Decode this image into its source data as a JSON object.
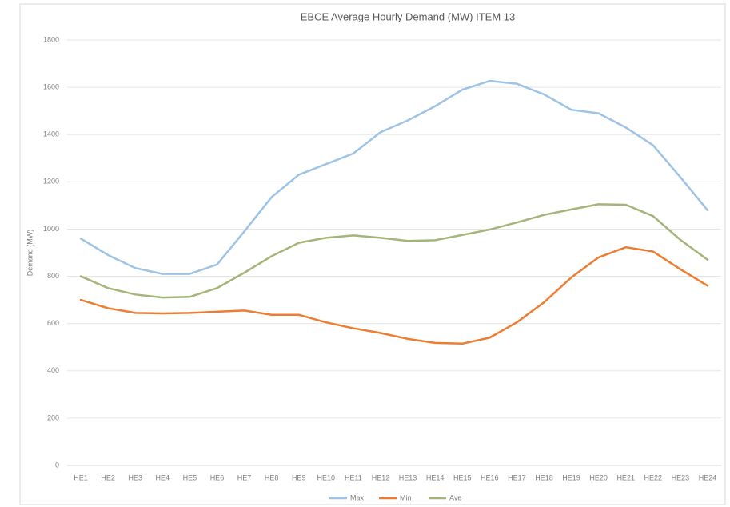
{
  "chart_data": {
    "type": "line",
    "title": "EBCE Average Hourly Demand (MW) ITEM 13",
    "y_label": "Demand (MW)",
    "categories": [
      "HE1",
      "HE2",
      "HE3",
      "HE4",
      "HE5",
      "HE6",
      "HE7",
      "HE8",
      "HE9",
      "HE10",
      "HE11",
      "HE12",
      "HE13",
      "HE14",
      "HE15",
      "HE16",
      "HE17",
      "HE18",
      "HE19",
      "HE20",
      "HE21",
      "HE22",
      "HE23",
      "HE24"
    ],
    "series": [
      {
        "name": "Max",
        "color": "#9dc3e6",
        "values": [
          960,
          890,
          835,
          810,
          810,
          850,
          990,
          1135,
          1230,
          1275,
          1320,
          1410,
          1460,
          1520,
          1590,
          1627,
          1615,
          1570,
          1505,
          1490,
          1430,
          1355,
          1220,
          1080
        ]
      },
      {
        "name": "Min",
        "color": "#ed7d31",
        "values": [
          700,
          665,
          645,
          643,
          645,
          650,
          655,
          637,
          637,
          605,
          580,
          560,
          535,
          518,
          515,
          540,
          605,
          690,
          795,
          880,
          923,
          905,
          830,
          760
        ]
      },
      {
        "name": "Ave",
        "color": "#a5b57a",
        "values": [
          800,
          750,
          723,
          710,
          713,
          750,
          815,
          885,
          942,
          963,
          973,
          963,
          950,
          953,
          975,
          998,
          1028,
          1060,
          1083,
          1105,
          1103,
          1055,
          955,
          870
        ]
      }
    ],
    "ylim": [
      0,
      1800
    ],
    "yticks": [
      0,
      200,
      400,
      600,
      800,
      1000,
      1200,
      1400,
      1600,
      1800
    ],
    "grid": true,
    "legend": "bottom"
  }
}
